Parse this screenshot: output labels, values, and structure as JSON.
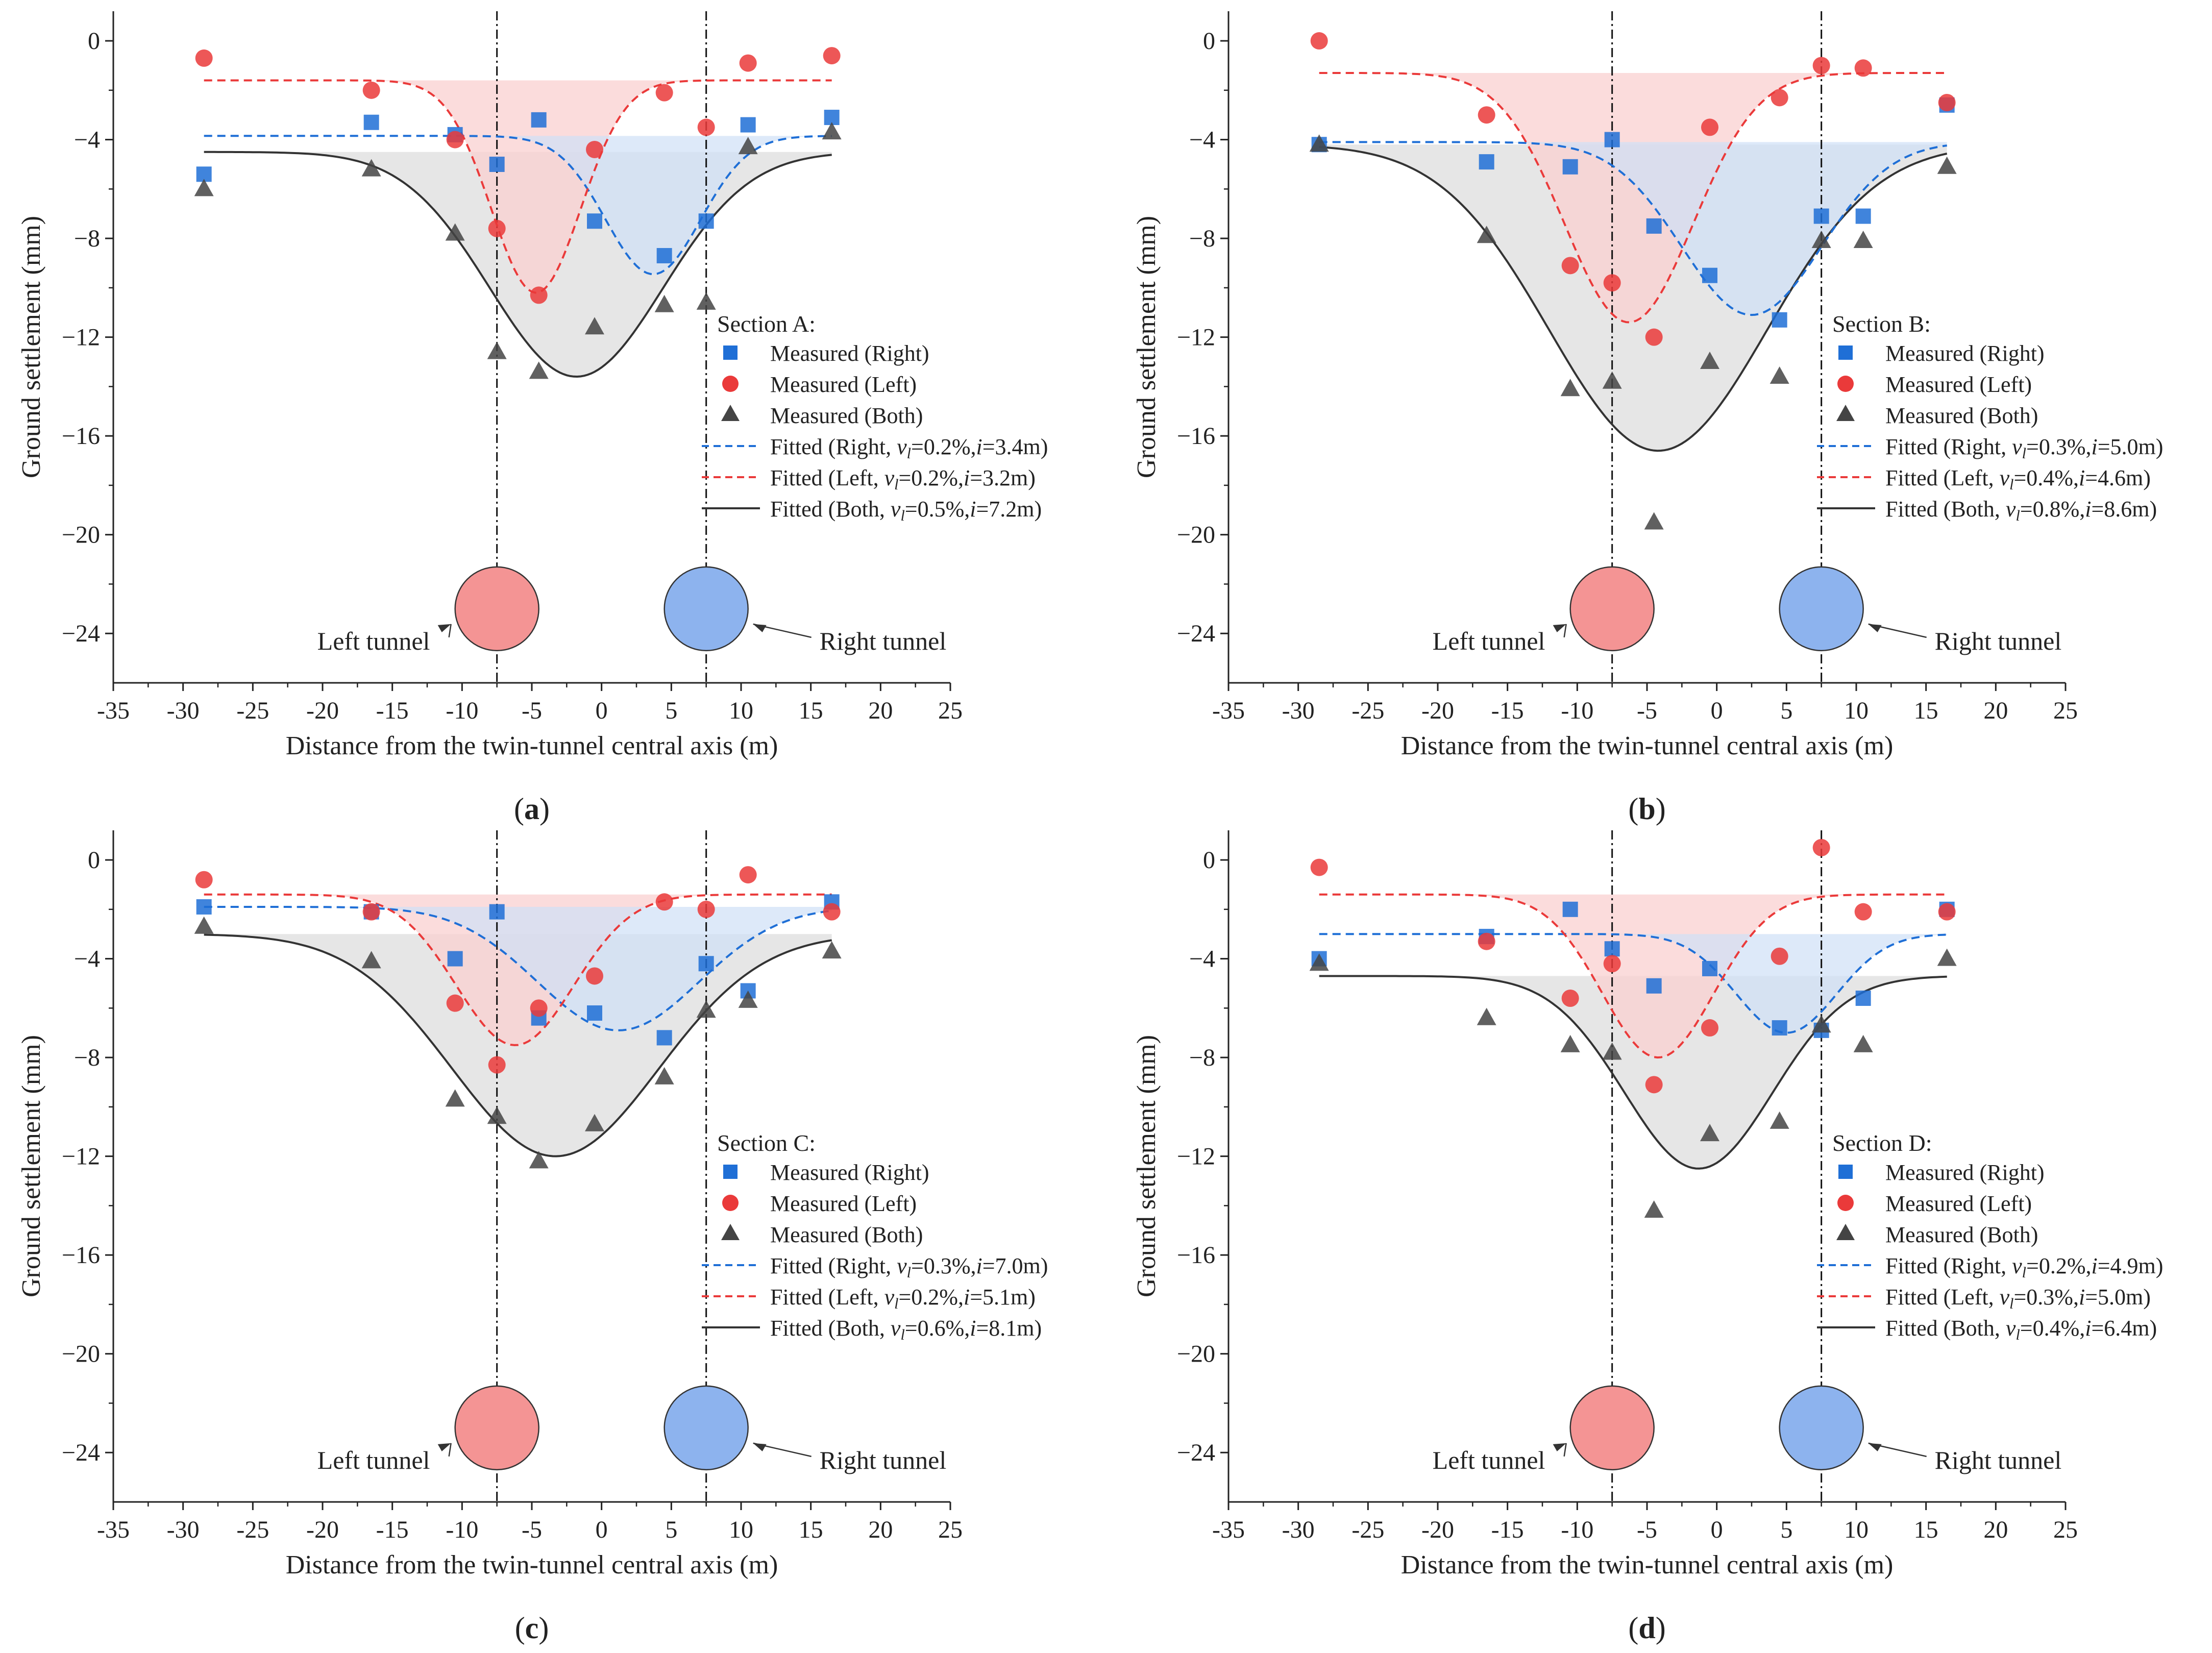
{
  "figure": {
    "xlabel": "Distance from the twin-tunnel central axis (m)",
    "ylabel": "Ground settlement (mm)",
    "xlim": [
      -35,
      25
    ],
    "ylim": [
      -26,
      1.2
    ],
    "xticks": [
      -35,
      -30,
      -25,
      -20,
      -15,
      -10,
      -5,
      0,
      5,
      10,
      15,
      20,
      25
    ],
    "yticks": [
      0,
      -4,
      -8,
      -12,
      -16,
      -20,
      -24
    ],
    "tunnel_centers": [
      -7.5,
      7.5
    ],
    "tunnel_depth_label_y": -23.0,
    "left_tunnel_label": "Left tunnel",
    "right_tunnel_label": "Right tunnel",
    "legend_measured_right": "Measured (Right)",
    "legend_measured_left": "Measured (Left)",
    "legend_measured_both": "Measured (Both)",
    "colors": {
      "right": "#1f6fd6",
      "left": "#ea3a3a",
      "both": "#444444",
      "left_fill": "#f9d0d0",
      "right_fill": "#cfe0f7",
      "both_fill": "#e3e3e3",
      "left_tunnel": "#f49494",
      "right_tunnel": "#8db3ee"
    }
  },
  "chart_data": [
    {
      "type": "scatter",
      "panel": "(a)",
      "panel_letter": "a",
      "section": "Section A:",
      "fits": {
        "right": {
          "name": "Fitted (Right, ",
          "vl": "0.2%",
          "i": "3.4m",
          "vl_text": "=0.2%,",
          "i_text": "=3.4m)",
          "center": 3.7,
          "base": -3.85,
          "smax": 5.6,
          "width": 3.4
        },
        "left": {
          "name": "Fitted (Left, ",
          "vl": "0.2%",
          "i": "3.2m",
          "vl_text": "=0.2%,",
          "i_text": "=3.2m)",
          "center": -4.7,
          "base": -1.6,
          "smax": 8.6,
          "width": 3.2
        },
        "both": {
          "name": "Fitted (Both, ",
          "vl": "0.5%",
          "i": "7.2m",
          "vl_text": "=0.5%,",
          "i_text": "=7.2m)",
          "center": -1.8,
          "base": -4.5,
          "smax": 9.1,
          "width": 6.2
        }
      },
      "measured_right": {
        "x": [
          -28.5,
          -16.5,
          -10.5,
          -7.5,
          -4.5,
          -0.5,
          4.5,
          7.5,
          10.5,
          16.5
        ],
        "y": [
          -5.4,
          -3.3,
          -3.8,
          -5.0,
          -3.2,
          -7.3,
          -8.7,
          -7.3,
          -3.4,
          -3.1
        ]
      },
      "measured_left": {
        "x": [
          -28.5,
          -16.5,
          -10.5,
          -7.5,
          -4.5,
          -0.5,
          4.5,
          7.5,
          10.5,
          16.5
        ],
        "y": [
          -0.7,
          -2.0,
          -4.0,
          -7.6,
          -10.3,
          -4.4,
          -2.1,
          -3.5,
          -0.9,
          -0.6
        ]
      },
      "measured_both": {
        "x": [
          -28.5,
          -16.5,
          -10.5,
          -7.5,
          -4.5,
          -0.5,
          4.5,
          7.5,
          10.5,
          16.5
        ],
        "y": [
          -6.0,
          -5.2,
          -7.8,
          -12.6,
          -13.4,
          -11.6,
          -10.7,
          -10.6,
          -4.3,
          -3.7
        ]
      }
    },
    {
      "type": "scatter",
      "panel": "(b)",
      "panel_letter": "b",
      "section": "Section B:",
      "fits": {
        "right": {
          "name": "Fitted (Right, ",
          "vl": "0.3%",
          "i": "5.0m",
          "vl_text": "=0.3%,",
          "i_text": "=5.0m)",
          "center": 2.5,
          "base": -4.1,
          "smax": 7.0,
          "width": 5.0
        },
        "left": {
          "name": "Fitted (Left, ",
          "vl": "0.4%",
          "i": "4.6m",
          "vl_text": "=0.4%,",
          "i_text": "=4.6m)",
          "center": -6.3,
          "base": -1.3,
          "smax": 10.1,
          "width": 4.6
        },
        "both": {
          "name": "Fitted (Both, ",
          "vl": "0.8%",
          "i": "8.6m",
          "vl_text": "=0.8%,",
          "i_text": "=8.6m)",
          "center": -4.2,
          "base": -4.2,
          "smax": 12.4,
          "width": 7.8
        }
      },
      "measured_right": {
        "x": [
          -28.5,
          -16.5,
          -10.5,
          -7.5,
          -4.5,
          -0.5,
          4.5,
          7.5,
          10.5,
          16.5
        ],
        "y": [
          -4.2,
          -4.9,
          -5.1,
          -4.0,
          -7.5,
          -9.5,
          -11.3,
          -7.1,
          -7.1,
          -2.6
        ]
      },
      "measured_left": {
        "x": [
          -28.5,
          -16.5,
          -10.5,
          -7.5,
          -4.5,
          -0.5,
          4.5,
          7.5,
          10.5,
          16.5
        ],
        "y": [
          0.0,
          -3.0,
          -9.1,
          -9.8,
          -12.0,
          -3.5,
          -2.3,
          -1.0,
          -1.1,
          -2.5
        ]
      },
      "measured_both": {
        "x": [
          -28.5,
          -16.5,
          -10.5,
          -7.5,
          -4.5,
          -0.5,
          4.5,
          7.5,
          10.5,
          16.5
        ],
        "y": [
          -4.2,
          -7.9,
          -14.1,
          -13.8,
          -19.5,
          -13.0,
          -13.6,
          -8.1,
          -8.1,
          -5.1
        ]
      }
    },
    {
      "type": "scatter",
      "panel": "(c)",
      "panel_letter": "c",
      "section": "Section C:",
      "fits": {
        "right": {
          "name": "Fitted (Right, ",
          "vl": "0.3%",
          "i": "7.0m",
          "vl_text": "=0.3%,",
          "i_text": "=7.0m)",
          "center": 1.2,
          "base": -1.9,
          "smax": 5.0,
          "width": 5.8
        },
        "left": {
          "name": "Fitted (Left, ",
          "vl": "0.2%",
          "i": "5.1m",
          "vl_text": "=0.2%,",
          "i_text": "=5.1m)",
          "center": -6.2,
          "base": -1.4,
          "smax": 6.1,
          "width": 4.2
        },
        "both": {
          "name": "Fitted (Both, ",
          "vl": "0.6%",
          "i": "8.1m",
          "vl_text": "=0.6%,",
          "i_text": "=8.1m)",
          "center": -3.3,
          "base": -3.0,
          "smax": 9.0,
          "width": 7.4
        }
      },
      "measured_right": {
        "x": [
          -28.5,
          -16.5,
          -10.5,
          -7.5,
          -4.5,
          -0.5,
          4.5,
          7.5,
          10.5,
          16.5
        ],
        "y": [
          -1.9,
          -2.1,
          -4.0,
          -2.1,
          -6.4,
          -6.2,
          -7.2,
          -4.2,
          -5.3,
          -1.7
        ]
      },
      "measured_left": {
        "x": [
          -28.5,
          -16.5,
          -10.5,
          -7.5,
          -4.5,
          -0.5,
          4.5,
          7.5,
          10.5,
          16.5
        ],
        "y": [
          -0.8,
          -2.1,
          -5.8,
          -8.3,
          -6.0,
          -4.7,
          -1.7,
          -2.0,
          -0.6,
          -2.1
        ]
      },
      "measured_both": {
        "x": [
          -28.5,
          -16.5,
          -10.5,
          -7.5,
          -4.5,
          -0.5,
          4.5,
          7.5,
          10.5,
          16.5
        ],
        "y": [
          -2.7,
          -4.1,
          -9.7,
          -10.4,
          -12.2,
          -10.7,
          -8.8,
          -6.1,
          -5.7,
          -3.7
        ]
      }
    },
    {
      "type": "scatter",
      "panel": "(d)",
      "panel_letter": "d",
      "section": "Section D:",
      "fits": {
        "right": {
          "name": "Fitted (Right, ",
          "vl": "0.2%",
          "i": "4.9m",
          "vl_text": "=0.2%,",
          "i_text": "=4.9m)",
          "center": 5.0,
          "base": -3.0,
          "smax": 4.0,
          "width": 3.6
        },
        "left": {
          "name": "Fitted (Left, ",
          "vl": "0.3%",
          "i": "5.0m",
          "vl_text": "=0.3%,",
          "i_text": "=5.0m)",
          "center": -4.2,
          "base": -1.4,
          "smax": 6.6,
          "width": 4.0
        },
        "both": {
          "name": "Fitted (Both, ",
          "vl": "0.4%",
          "i": "6.4m",
          "vl_text": "=0.4%,",
          "i_text": "=6.4m)",
          "center": -1.3,
          "base": -4.7,
          "smax": 7.8,
          "width": 5.3
        }
      },
      "measured_right": {
        "x": [
          -28.5,
          -16.5,
          -10.5,
          -7.5,
          -4.5,
          -0.5,
          4.5,
          7.5,
          10.5,
          16.5
        ],
        "y": [
          -4.0,
          -3.1,
          -2.0,
          -3.6,
          -5.1,
          -4.4,
          -6.8,
          -6.9,
          -5.6,
          -2.0
        ]
      },
      "measured_left": {
        "x": [
          -28.5,
          -16.5,
          -10.5,
          -7.5,
          -4.5,
          -0.5,
          4.5,
          7.5,
          10.5,
          16.5
        ],
        "y": [
          -0.3,
          -3.3,
          -5.6,
          -4.2,
          -9.1,
          -6.8,
          -3.9,
          0.5,
          -2.1,
          -2.1
        ]
      },
      "measured_both": {
        "x": [
          -28.5,
          -16.5,
          -10.5,
          -7.5,
          -4.5,
          -0.5,
          4.5,
          7.5,
          10.5,
          16.5
        ],
        "y": [
          -4.2,
          -6.4,
          -7.5,
          -7.8,
          -14.2,
          -11.1,
          -10.6,
          -6.7,
          -7.5,
          -4.0
        ]
      }
    }
  ]
}
